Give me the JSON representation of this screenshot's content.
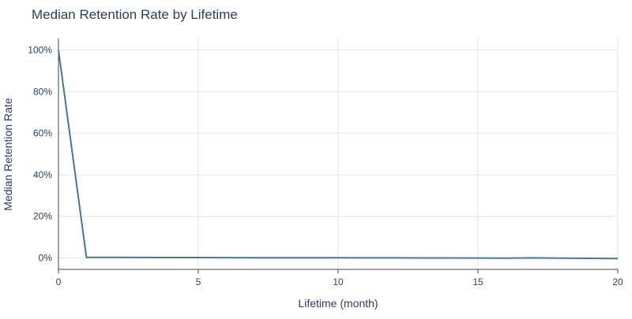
{
  "chart_data": {
    "type": "line",
    "title": "Median Retention Rate by Lifetime",
    "xlabel": "Lifetime (month)",
    "ylabel": "Median Retention Rate",
    "xlim": [
      0,
      20
    ],
    "ylim": [
      -5.5,
      105.5
    ],
    "x_ticks": [
      0,
      5,
      10,
      15,
      20
    ],
    "y_ticks": [
      0,
      20,
      40,
      60,
      80,
      100
    ],
    "y_tick_suffix": "%",
    "grid": true,
    "line_color": "#4a7696",
    "series": [
      {
        "x": [
          0,
          1,
          2,
          3,
          4,
          5,
          6,
          7,
          8,
          9,
          10,
          11,
          12,
          13,
          14,
          15,
          16,
          17,
          18,
          19,
          20
        ],
        "y": [
          100,
          0.3,
          0.3,
          0.25,
          0.2,
          0.2,
          0.15,
          0.1,
          0.1,
          0.1,
          0.1,
          0.05,
          0.05,
          0,
          0,
          -0.05,
          -0.1,
          0.05,
          -0.1,
          -0.2,
          -0.3
        ]
      }
    ]
  }
}
